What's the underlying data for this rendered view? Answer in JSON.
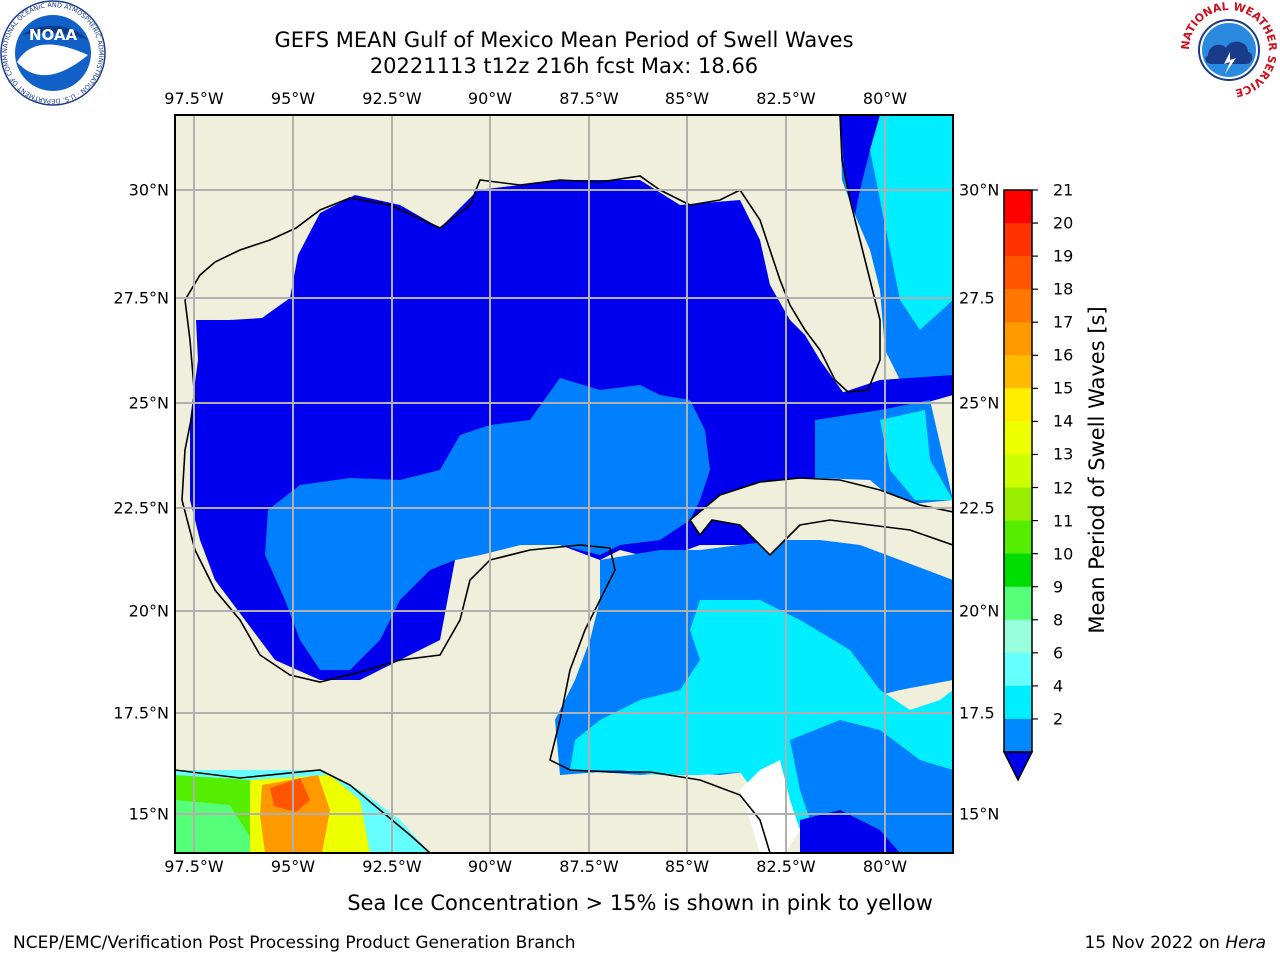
{
  "title": {
    "line1": "GEFS MEAN Gulf of Mexico Mean Period of Swell Waves",
    "line2": "20221113 t12z 216h fcst   Max: 18.66"
  },
  "map": {
    "lon_labels": [
      "97.5°W",
      "95°W",
      "92.5°W",
      "90°W",
      "87.5°W",
      "85°W",
      "82.5°W",
      "80°W"
    ],
    "lat_labels_left": [
      "30°N",
      "27.5°N",
      "25°N",
      "22.5°N",
      "20°N",
      "17.5°N",
      "15°N"
    ],
    "lat_labels_right": [
      "30°N",
      "27.5",
      "25°N",
      "22.5",
      "20°N",
      "17.5",
      "15°N"
    ]
  },
  "colorbar": {
    "title": "Mean Period of Swell Waves [s]",
    "ticks": [
      "21",
      "20",
      "19",
      "18",
      "17",
      "16",
      "15",
      "14",
      "13",
      "12",
      "11",
      "10",
      "9",
      "8",
      "6",
      "4",
      "2"
    ],
    "colors": [
      "#ff0000",
      "#ff3300",
      "#ff5500",
      "#ff7700",
      "#ff9900",
      "#ffbb00",
      "#ffee00",
      "#eeff00",
      "#ccff00",
      "#99ee00",
      "#55ee00",
      "#00dd00",
      "#55ff77",
      "#99ffdd",
      "#66ffff",
      "#00eeff",
      "#0088ff",
      "#0000ee"
    ]
  },
  "colors": {
    "land": "#efefdc",
    "swell_2_4": "#0000ee",
    "swell_4_6": "#0080ff",
    "swell_6_8": "#00eeff",
    "swell_8_9": "#66ffff"
  },
  "footer": {
    "note": "Sea Ice Concentration > 15% is shown in pink to yellow",
    "credit": "NCEP/EMC/Verification Post Processing Product Generation Branch",
    "date": "15 Nov 2022 on",
    "machine": "Hera"
  },
  "logos": {
    "noaa": "NOAA",
    "noaa_ring": "NATIONAL OCEANIC AND ATMOSPHERIC ADMINISTRATION · U.S. DEPARTMENT OF COMMERCE",
    "nws_ring": "NATIONAL WEATHER SERVICE"
  }
}
